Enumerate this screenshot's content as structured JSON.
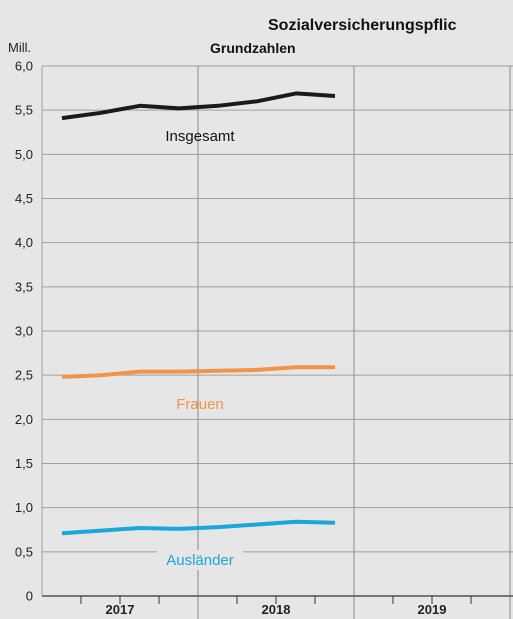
{
  "chart_data": {
    "type": "line",
    "title": "Sozialversicherungspflic",
    "subtitle": "Grundzahlen",
    "yunit": "Mill.",
    "ylim": [
      0,
      6.0
    ],
    "yticks": [
      "0",
      "0,5",
      "1,0",
      "1,5",
      "2,0",
      "2,5",
      "3,0",
      "3,5",
      "4,0",
      "4,5",
      "5,0",
      "5,5",
      "6,0"
    ],
    "years": [
      "2017",
      "2018",
      "2019"
    ],
    "quarters_per_year": 4,
    "x": [
      "2017-Q1",
      "2017-Q2",
      "2017-Q3",
      "2017-Q4",
      "2018-Q1",
      "2018-Q2",
      "2018-Q3",
      "2018-Q4"
    ],
    "series": [
      {
        "name": "Insgesamt",
        "color": "#1a1a1a",
        "values": [
          5.41,
          5.47,
          5.55,
          5.52,
          5.55,
          5.6,
          5.69,
          5.66
        ]
      },
      {
        "name": "Frauen",
        "color": "#f0944a",
        "values": [
          2.48,
          2.5,
          2.54,
          2.54,
          2.55,
          2.56,
          2.59,
          2.59
        ]
      },
      {
        "name": "Ausländer",
        "color": "#1aa7d9",
        "values": [
          0.71,
          0.74,
          0.77,
          0.76,
          0.78,
          0.81,
          0.84,
          0.83
        ]
      }
    ],
    "grid": true
  }
}
